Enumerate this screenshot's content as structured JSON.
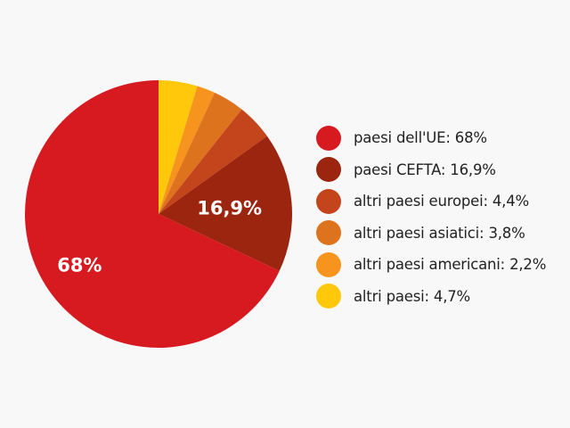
{
  "chart_data": {
    "type": "pie",
    "start_angle": "top, clockwise",
    "slices": [
      {
        "label": "altri paesi: 4,7%",
        "value": 4.7,
        "color": "#ffc80a"
      },
      {
        "label": "altri paesi americani: 2,2%",
        "value": 2.2,
        "color": "#f7941d"
      },
      {
        "label": "altri paesi asiatici: 3,8%",
        "value": 3.8,
        "color": "#de731e"
      },
      {
        "label": "altri paesi europei: 4,4%",
        "value": 4.4,
        "color": "#c4441b"
      },
      {
        "label": "paesi CEFTA: 16,9%",
        "value": 16.9,
        "color": "#9c2510",
        "data_label": "16,9%"
      },
      {
        "label": "paesi dell'UE: 68%",
        "value": 68,
        "color": "#d71920",
        "data_label": "68%"
      }
    ],
    "legend": {
      "placement": "right",
      "order": [
        5,
        4,
        3,
        2,
        1,
        0
      ]
    }
  }
}
